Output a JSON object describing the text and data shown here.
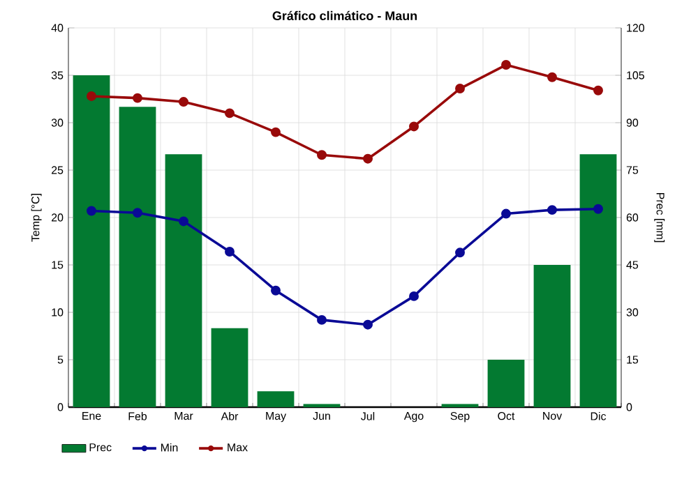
{
  "chart_data": {
    "type": "line",
    "title": "Gráfico climático - Maun",
    "ylabel": "Temp [°C]",
    "y2label": "Prec [mm]",
    "categories": [
      "Ene",
      "Feb",
      "Mar",
      "Abr",
      "May",
      "Jun",
      "Jul",
      "Ago",
      "Sep",
      "Oct",
      "Nov",
      "Dic"
    ],
    "series": [
      {
        "name": "Prec",
        "type": "bar",
        "axis": "y2",
        "color": "#037a31",
        "values": [
          105,
          95,
          80,
          25,
          5,
          1,
          0,
          0,
          1,
          15,
          45,
          80
        ]
      },
      {
        "name": "Min",
        "color": "#0a0a96",
        "values": [
          20.7,
          20.5,
          19.6,
          16.4,
          12.3,
          9.2,
          8.7,
          11.7,
          16.3,
          20.4,
          20.8,
          20.9
        ]
      },
      {
        "name": "Max",
        "color": "#990a0a",
        "values": [
          32.8,
          32.6,
          32.2,
          31.0,
          29.0,
          26.6,
          26.2,
          29.6,
          33.6,
          36.1,
          34.8,
          33.4
        ]
      }
    ],
    "ylim": [
      0,
      40
    ],
    "yticks": [
      0,
      5,
      10,
      15,
      20,
      25,
      30,
      35,
      40
    ],
    "y2lim": [
      0,
      120
    ],
    "y2ticks": [
      0,
      15,
      30,
      45,
      60,
      75,
      90,
      105,
      120
    ],
    "grid": true,
    "legend": "bottom",
    "marker": "circle",
    "line_style": "solid"
  }
}
